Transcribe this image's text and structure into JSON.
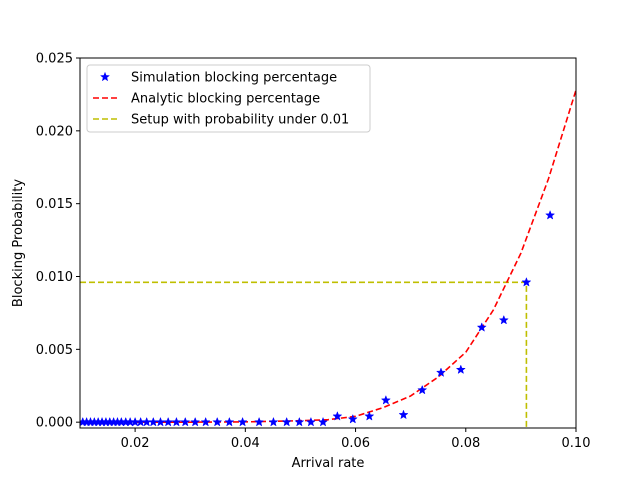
{
  "chart_data": {
    "type": "line",
    "xlabel": "Arrival rate",
    "ylabel": "Blocking Probability",
    "xlim": [
      0.01,
      0.1
    ],
    "ylim": [
      -0.0004,
      0.025
    ],
    "x_ticks": [
      0.02,
      0.04,
      0.06,
      0.08,
      0.1
    ],
    "x_tick_labels": [
      "0.02",
      "0.04",
      "0.06",
      "0.08",
      "0.10"
    ],
    "y_ticks": [
      0.0,
      0.005,
      0.01,
      0.015,
      0.02,
      0.025
    ],
    "y_tick_labels": [
      "0.000",
      "0.005",
      "0.010",
      "0.015",
      "0.020",
      "0.025"
    ],
    "grid": false,
    "legend_position": "top-left",
    "series": [
      {
        "name": "Simulation blocking percentage",
        "style": "markers",
        "marker": "star",
        "color": "#0000ff",
        "x": [
          0.0105,
          0.0112,
          0.0119,
          0.0126,
          0.0133,
          0.014,
          0.0147,
          0.0154,
          0.0161,
          0.0168,
          0.0175,
          0.0183,
          0.0191,
          0.02,
          0.021,
          0.0221,
          0.0233,
          0.0246,
          0.026,
          0.0275,
          0.0291,
          0.0309,
          0.0328,
          0.0349,
          0.0371,
          0.0395,
          0.0425,
          0.0451,
          0.0475,
          0.0498,
          0.0519,
          0.0541,
          0.0567,
          0.0595,
          0.0625,
          0.0655,
          0.0687,
          0.0721,
          0.0755,
          0.0791,
          0.0829,
          0.0869,
          0.091,
          0.0953
        ],
        "y": [
          0.0,
          0.0,
          0.0,
          0.0,
          0.0,
          0.0,
          0.0,
          0.0,
          0.0,
          0.0,
          0.0,
          0.0,
          0.0,
          0.0,
          0.0,
          0.0,
          0.0,
          0.0,
          0.0,
          0.0,
          0.0,
          0.0,
          0.0,
          0.0,
          0.0,
          0.0,
          0.0,
          0.0,
          0.0,
          0.0,
          0.0,
          0.0,
          0.0004,
          0.0002,
          0.0004,
          0.0015,
          0.0005,
          0.0022,
          0.0034,
          0.0036,
          0.0065,
          0.007,
          0.0096,
          0.0142
        ]
      },
      {
        "name": "Analytic blocking percentage",
        "style": "dashed",
        "color": "#ff0000",
        "x": [
          0.01,
          0.02,
          0.03,
          0.04,
          0.05,
          0.055,
          0.06,
          0.065,
          0.07,
          0.075,
          0.08,
          0.085,
          0.09,
          0.095,
          0.1
        ],
        "y": [
          0.0,
          0.0,
          0.0,
          2e-05,
          0.0001,
          0.00017,
          0.0004,
          0.001,
          0.0018,
          0.0031,
          0.0048,
          0.0077,
          0.0116,
          0.0167,
          0.0228
        ]
      },
      {
        "name": "Setup with probability under 0.01",
        "style": "dashed",
        "color": "#bfbf00",
        "x": [
          0.01,
          0.091,
          0.091
        ],
        "y": [
          0.0096,
          0.0096,
          -0.0004
        ]
      }
    ]
  }
}
